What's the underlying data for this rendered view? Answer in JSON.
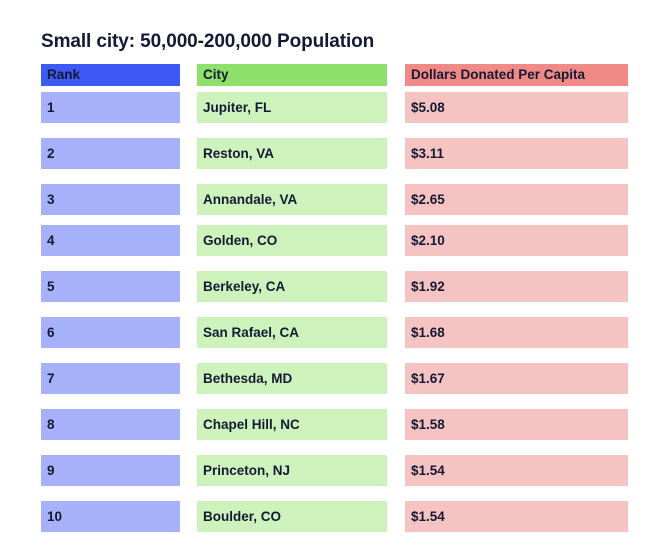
{
  "title": "Small city: 50,000-200,000 Population",
  "colors": {
    "rank_header": "#3d5af5",
    "rank_cell": "#a7b1fa",
    "city_header": "#8ee06a",
    "city_cell": "#cdf2bc",
    "amount_header": "#f08a86",
    "amount_cell": "#f5c4c2"
  },
  "chart_data": {
    "type": "table",
    "title": "Small city: 50,000-200,000 Population",
    "columns": [
      "Rank",
      "City",
      "Dollars Donated Per Capita"
    ],
    "rows": [
      [
        "1",
        "Jupiter, FL",
        "$5.08"
      ],
      [
        "2",
        "Reston, VA",
        "$3.11"
      ],
      [
        "3",
        "Annandale, VA",
        "$2.65"
      ],
      [
        "4",
        "Golden, CO",
        "$2.10"
      ],
      [
        "5",
        "Berkeley, CA",
        "$1.92"
      ],
      [
        "6",
        "San Rafael, CA",
        "$1.68"
      ],
      [
        "7",
        "Bethesda, MD",
        "$1.67"
      ],
      [
        "8",
        "Chapel Hill, NC",
        "$1.58"
      ],
      [
        "9",
        "Princeton, NJ",
        "$1.54"
      ],
      [
        "10",
        "Boulder, CO",
        "$1.54"
      ]
    ]
  }
}
